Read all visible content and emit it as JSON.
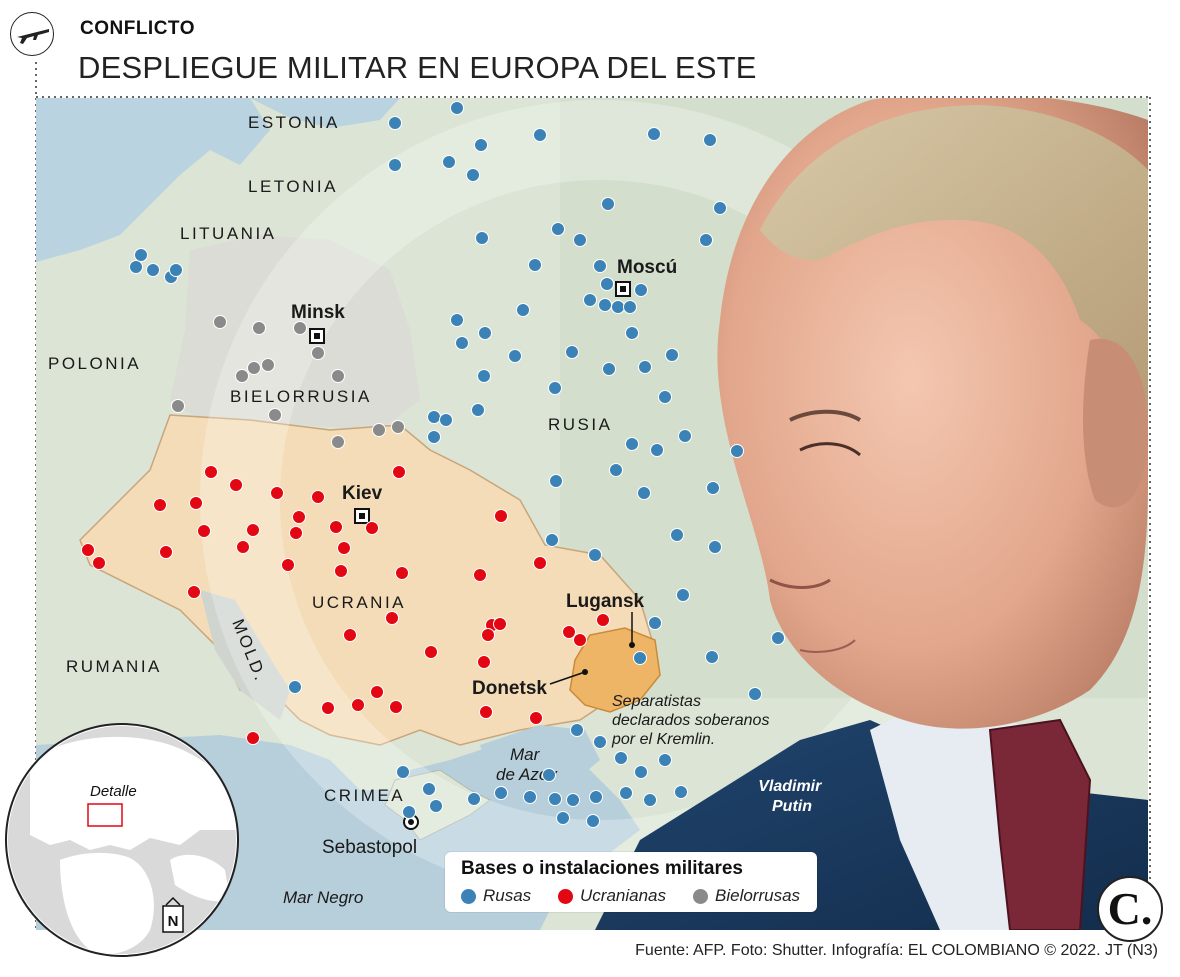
{
  "header": {
    "kicker": "CONFLICTO",
    "title": "DESPLIEGUE MILITAR EN EUROPA DEL ESTE"
  },
  "map": {
    "countries": [
      "ESTONIA",
      "LETONIA",
      "LITUANIA",
      "POLONIA",
      "BIELORRUSIA",
      "RUSIA",
      "UCRANIA",
      "MOLD.",
      "RUMANIA",
      "CRIMEA"
    ],
    "cities": [
      "Moscú",
      "Minsk",
      "Kiev",
      "Lugansk",
      "Donetsk",
      "Sebastopol"
    ],
    "seas": [
      "Mar de Azov",
      "Mar Negro"
    ],
    "annotation": "Separatistas declarados soberanos por el Kremlin.",
    "photo_caption": "Vladimir Putin"
  },
  "inset": {
    "label": "Detalle",
    "north": "N"
  },
  "legend": {
    "title": "Bases o instalaciones militares",
    "items": [
      {
        "label": "Rusas",
        "color": "#3b82b6"
      },
      {
        "label": "Ucranianas",
        "color": "#e30613"
      },
      {
        "label": "Bielorrusas",
        "color": "#8a8a8a"
      }
    ]
  },
  "logo": "C.",
  "credits": "Fuente: AFP. Foto: Shutter. Infografía: EL COLOMBIANO © 2022. JT (N3)"
}
